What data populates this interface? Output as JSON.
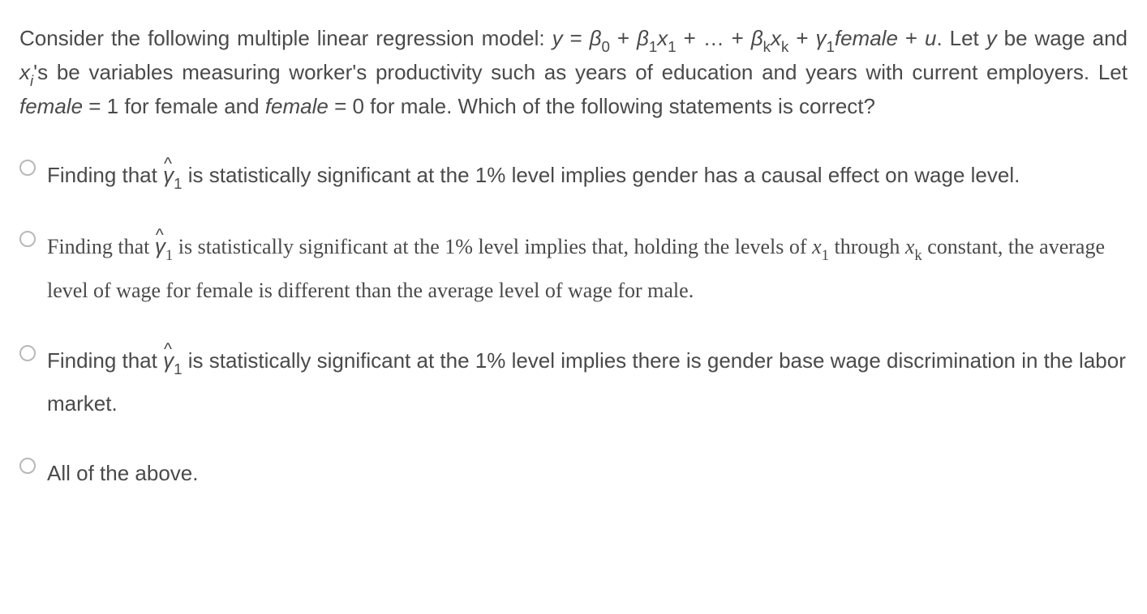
{
  "question": {
    "part1": "Consider the following multiple linear regression model: ",
    "equation_prefix": "y",
    "equals": " = ",
    "beta0": "β",
    "beta0_sub": "0",
    "plus": " + ",
    "beta1": "β",
    "beta1_sub": "1",
    "x1": "x",
    "x1_sub": "1",
    "dots": " + … + ",
    "betak": "β",
    "betak_sub": "k",
    "xk": "x",
    "xk_sub": "k",
    "gamma1": "γ",
    "gamma1_sub": "1",
    "female_var": "female",
    "plus_u": " + ",
    "u_var": "u",
    "period_let": ". Let ",
    "y_be": "y",
    "be_wage": " be wage and ",
    "xi": "x",
    "xi_sub": "i",
    "apostrophe_s": "'s be variables measuring worker's productivity such as years of education and years with current employers. Let ",
    "female_eq1": "female",
    "eq1_text": " = 1 for female and ",
    "female_eq0": "female",
    "eq0_text": " = 0 for male. Which of the following statements is correct?"
  },
  "options": {
    "a": {
      "prefix": "Finding that ",
      "gamma": "γ",
      "hat": "^",
      "sub": "1",
      "rest": " is statistically significant at the 1% level implies gender has a causal effect on wage level."
    },
    "b": {
      "prefix": "Finding that ",
      "gamma": "γ",
      "hat": "^",
      "sub": "1",
      "mid": " is statistically significant at the 1% level implies that, holding the levels of ",
      "x1": "x",
      "x1_sub": "1",
      "through": " through ",
      "xk": "x",
      "xk_sub": "k",
      "rest": " constant, the average level of wage for female is different than the average level of wage for male."
    },
    "c": {
      "prefix": "Finding that ",
      "gamma": "γ",
      "hat": "^",
      "sub": "1",
      "rest": " is statistically significant at the 1% level implies there is gender base wage discrimination in the labor market."
    },
    "d": {
      "text": "All of the above."
    }
  },
  "colors": {
    "text": "#4a4a4a",
    "radio_border": "#b8b8b8",
    "background": "#ffffff"
  }
}
